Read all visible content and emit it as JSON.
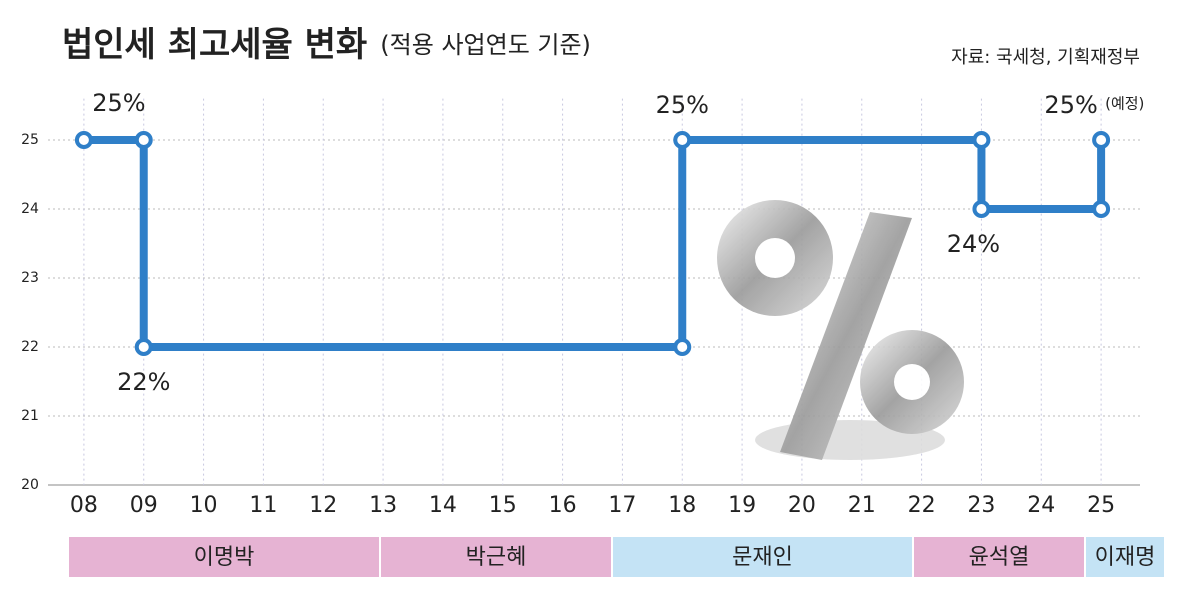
{
  "chart_data": {
    "type": "step-line",
    "title": "법인세 최고세율 변화",
    "subtitle": "(적용 사업연도 기준)",
    "source": "자료: 국세청, 기획재정부",
    "annotation": "(예정)",
    "x": [
      8,
      9,
      9,
      18,
      18,
      23,
      23,
      25,
      25
    ],
    "values": [
      25,
      25,
      22,
      22,
      25,
      25,
      24,
      24,
      25
    ],
    "value_labels": [
      "25%",
      null,
      "22%",
      null,
      "25%",
      null,
      "24%",
      null,
      "25%"
    ],
    "color": "#2f7fc8",
    "xlim": [
      7.4,
      25.65
    ],
    "xticks": [
      {
        "value": 8,
        "label": "08"
      },
      {
        "value": 9,
        "label": "09"
      },
      10,
      11,
      12,
      13,
      14,
      15,
      16,
      17,
      18,
      19,
      20,
      21,
      22,
      23,
      24,
      25
    ],
    "ylim": [
      20,
      25.6
    ],
    "yticks": [
      20,
      21,
      22,
      23,
      24,
      25
    ],
    "grid": true,
    "periods": [
      {
        "label": "이명박",
        "color": "#e6b3d3"
      },
      {
        "label": "박근혜",
        "color": "#e6b3d3"
      },
      {
        "label": "문재인",
        "color": "#c4e3f5"
      },
      {
        "label": "윤석열",
        "color": "#e6b3d3"
      },
      {
        "label": "이재명",
        "color": "#c4e3f5"
      }
    ]
  }
}
